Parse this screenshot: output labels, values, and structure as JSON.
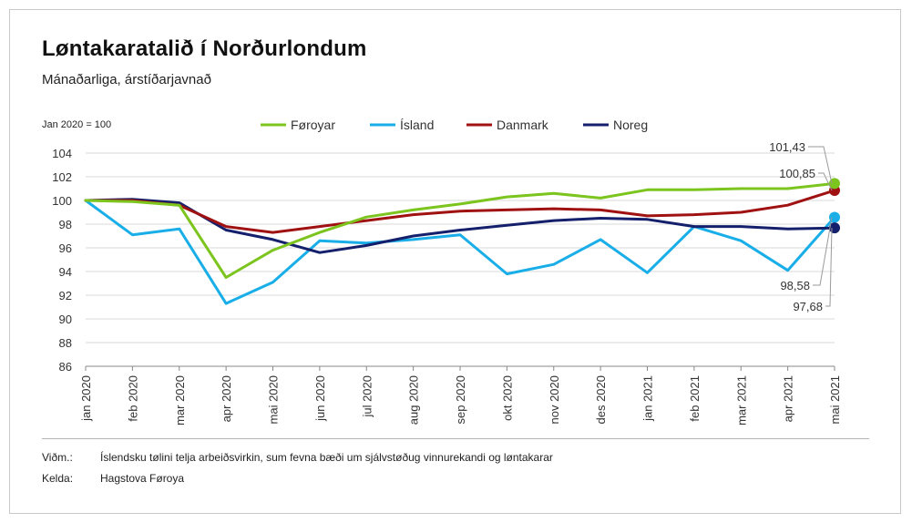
{
  "title": "Løntakaratalið í Norðurlondum",
  "subtitle": "Mánaðarliga, árstíðarjavnað",
  "index_note": "Jan 2020 = 100",
  "footnote": {
    "note_label": "Viðm.:",
    "note_text": "Íslendsku tølini telja arbeiðsvirkin, sum fevna bæði um sjálvstøðug vinnurekandi og løntakarar",
    "source_label": "Kelda:",
    "source_text": "Hagstova Føroya"
  },
  "chart_data": {
    "type": "line",
    "title": "Løntakaratalið í Norðurlondum",
    "subtitle": "Mánaðarliga, árstíðarjavnað",
    "categories": [
      "jan 2020",
      "feb 2020",
      "mar 2020",
      "apr 2020",
      "mai 2020",
      "jun 2020",
      "jul 2020",
      "aug 2020",
      "sep 2020",
      "okt 2020",
      "nov 2020",
      "des 2020",
      "jan 2021",
      "feb 2021",
      "mar 2021",
      "apr 2021",
      "mai 2021"
    ],
    "ylim": [
      86,
      104
    ],
    "yticks": [
      86,
      88,
      90,
      92,
      94,
      96,
      98,
      100,
      102,
      104
    ],
    "grid": true,
    "legend_position": "top",
    "series": [
      {
        "name": "Føroyar",
        "color": "#7cc41e",
        "values": [
          100.0,
          99.9,
          99.6,
          93.5,
          95.8,
          97.3,
          98.6,
          99.2,
          99.7,
          100.3,
          100.6,
          100.2,
          100.9,
          100.9,
          101.0,
          101.0,
          101.43
        ]
      },
      {
        "name": "Ísland",
        "color": "#19aee8",
        "values": [
          100.0,
          97.1,
          97.6,
          91.3,
          93.1,
          96.6,
          96.4,
          96.7,
          97.1,
          93.8,
          94.6,
          96.7,
          93.9,
          97.8,
          96.6,
          94.1,
          98.58
        ]
      },
      {
        "name": "Danmark",
        "color": "#a01212",
        "values": [
          100.0,
          100.0,
          99.6,
          97.8,
          97.3,
          97.8,
          98.3,
          98.8,
          99.1,
          99.2,
          99.3,
          99.2,
          98.7,
          98.8,
          99.0,
          99.6,
          100.85
        ]
      },
      {
        "name": "Noreg",
        "color": "#14206b",
        "values": [
          100.0,
          100.1,
          99.8,
          97.5,
          96.7,
          95.6,
          96.2,
          97.0,
          97.5,
          97.9,
          98.3,
          98.5,
          98.4,
          97.8,
          97.8,
          97.6,
          97.68
        ]
      }
    ],
    "annotations": [
      {
        "series": "Føroyar",
        "text": "101,43"
      },
      {
        "series": "Danmark",
        "text": "100,85"
      },
      {
        "series": "Ísland",
        "text": "98,58"
      },
      {
        "series": "Noreg",
        "text": "97,68"
      }
    ]
  }
}
